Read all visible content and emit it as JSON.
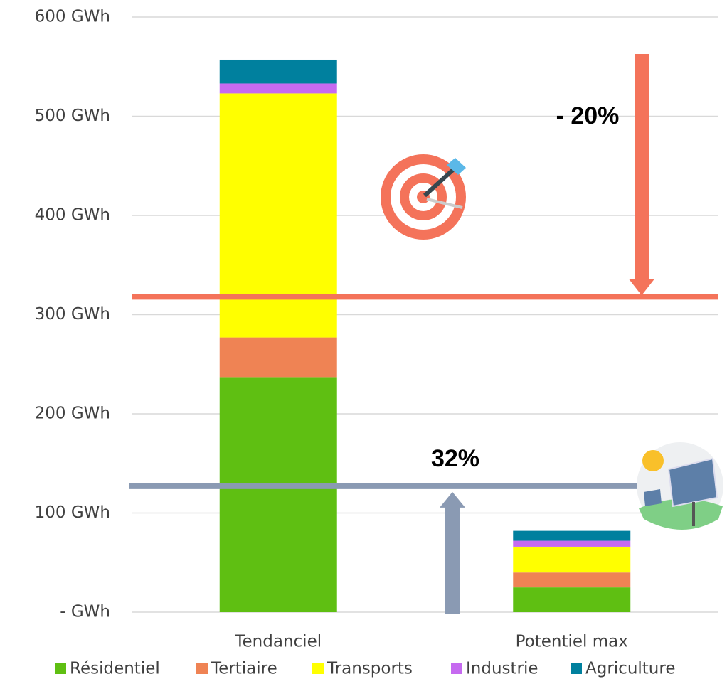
{
  "chart_data": {
    "type": "stacked_bar",
    "categories": [
      "Tendanciel",
      "Potentiel max"
    ],
    "series": [
      {
        "name": "Résidentiel",
        "color": "#5fbf12",
        "values": [
          237,
          25
        ]
      },
      {
        "name": "Tertiaire",
        "color": "#ef8354",
        "values": [
          40,
          15
        ]
      },
      {
        "name": "Transports",
        "color": "#ffff00",
        "values": [
          246,
          26
        ]
      },
      {
        "name": "Industrie",
        "color": "#c66af0",
        "values": [
          10,
          6
        ]
      },
      {
        "name": "Agriculture",
        "color": "#00809e",
        "values": [
          24,
          10
        ]
      }
    ],
    "ylim": [
      0,
      600
    ],
    "yticks": [
      {
        "value": 0,
        "label": "-   GWh"
      },
      {
        "value": 100,
        "label": "100   GWh"
      },
      {
        "value": 200,
        "label": "200   GWh"
      },
      {
        "value": 300,
        "label": "300   GWh"
      },
      {
        "value": 400,
        "label": "400   GWh"
      },
      {
        "value": 500,
        "label": "500   GWh"
      },
      {
        "value": 600,
        "label": "600   GWh"
      }
    ],
    "grid": true,
    "legend": "bottom",
    "reference_lines": [
      {
        "value": 318,
        "label": "- 20%",
        "color": "#f4735a"
      },
      {
        "value": 127,
        "label": "32%",
        "color": "#8a9ab3"
      }
    ]
  }
}
